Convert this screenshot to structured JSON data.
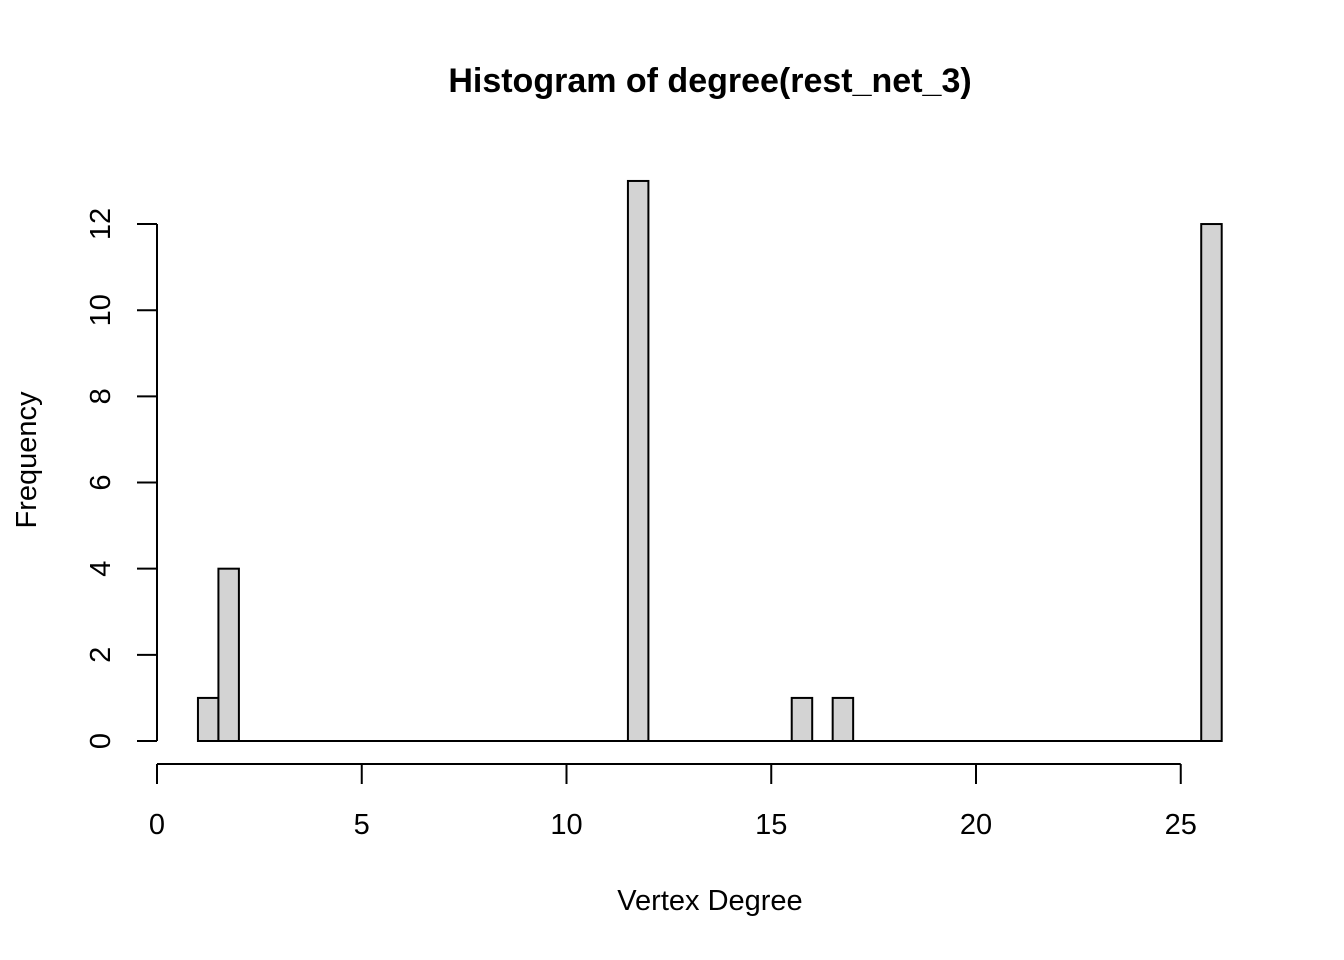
{
  "chart_data": {
    "type": "bar",
    "title": "Histogram of degree(rest_net_3)",
    "xlabel": "Vertex Degree",
    "ylabel": "Frequency",
    "xlim": [
      0,
      26
    ],
    "ylim": [
      0,
      13
    ],
    "x_ticks": [
      0,
      5,
      10,
      15,
      20,
      25
    ],
    "y_ticks": [
      0,
      2,
      4,
      6,
      8,
      10,
      12
    ],
    "bin_width": 0.5,
    "bins": [
      {
        "x0": 1.0,
        "x1": 1.5,
        "count": 1
      },
      {
        "x0": 1.5,
        "x1": 2.0,
        "count": 4
      },
      {
        "x0": 2.0,
        "x1": 11.5,
        "count": 0
      },
      {
        "x0": 11.5,
        "x1": 12.0,
        "count": 13
      },
      {
        "x0": 12.0,
        "x1": 15.5,
        "count": 0
      },
      {
        "x0": 15.5,
        "x1": 16.0,
        "count": 1
      },
      {
        "x0": 16.0,
        "x1": 16.5,
        "count": 0
      },
      {
        "x0": 16.5,
        "x1": 17.0,
        "count": 1
      },
      {
        "x0": 17.0,
        "x1": 25.5,
        "count": 0
      },
      {
        "x0": 25.5,
        "x1": 26.0,
        "count": 12
      }
    ],
    "bar_fill": "#d3d3d3",
    "bar_stroke": "#000000",
    "grid": false
  }
}
